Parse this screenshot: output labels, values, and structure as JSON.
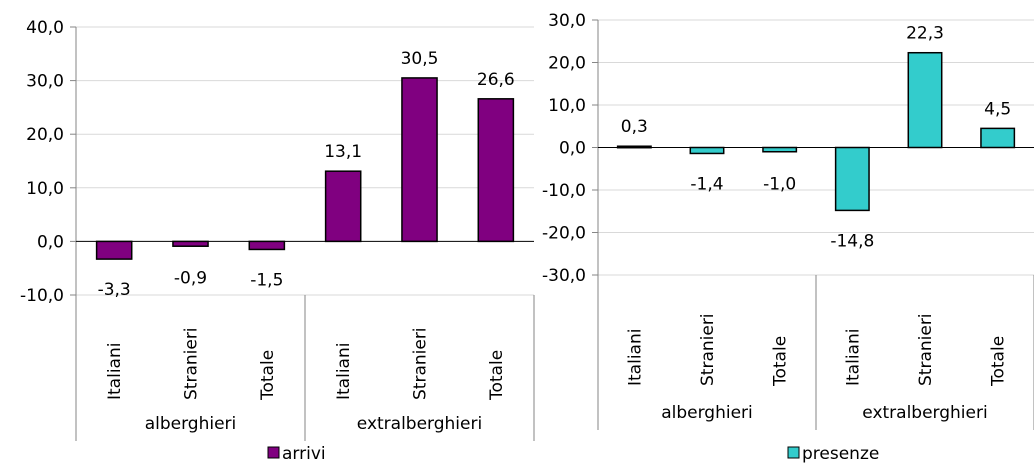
{
  "chart_data": [
    {
      "type": "bar",
      "groups": [
        "alberghieri",
        "extralberghieri"
      ],
      "categories": [
        "Italiani",
        "Stranieri",
        "Totale",
        "Italiani",
        "Stranieri",
        "Totale"
      ],
      "series": [
        {
          "name": "arrivi",
          "values": [
            -3.3,
            -0.9,
            -1.5,
            13.1,
            30.5,
            26.6
          ],
          "color": "#800080"
        }
      ],
      "data_labels": [
        "-3,3",
        "-0,9",
        "-1,5",
        "13,1",
        "30,5",
        "26,6"
      ],
      "ylim": [
        -10,
        40
      ],
      "yticks": [
        -10,
        0,
        10,
        20,
        30,
        40
      ],
      "ytick_labels": [
        "-10,0",
        "0,0",
        "10,0",
        "20,0",
        "30,0",
        "40,0"
      ],
      "grid": true,
      "legend": "bottom",
      "title": "",
      "xlabel": "",
      "ylabel": ""
    },
    {
      "type": "bar",
      "groups": [
        "alberghieri",
        "extralberghieri"
      ],
      "categories": [
        "Italiani",
        "Stranieri",
        "Totale",
        "Italiani",
        "Stranieri",
        "Totale"
      ],
      "series": [
        {
          "name": "presenze",
          "values": [
            0.3,
            -1.4,
            -1.0,
            -14.8,
            22.3,
            4.5
          ],
          "color": "#33CCCC"
        }
      ],
      "data_labels": [
        "0,3",
        "-1,4",
        "-1,0",
        "-14,8",
        "22,3",
        "4,5"
      ],
      "ylim": [
        -30,
        30
      ],
      "yticks": [
        -30,
        -20,
        -10,
        0,
        10,
        20,
        30
      ],
      "ytick_labels": [
        "-30,0",
        "-20,0",
        "-10,0",
        "0,0",
        "10,0",
        "20,0",
        "30,0"
      ],
      "grid": true,
      "legend": "bottom",
      "title": "",
      "xlabel": "",
      "ylabel": ""
    }
  ]
}
